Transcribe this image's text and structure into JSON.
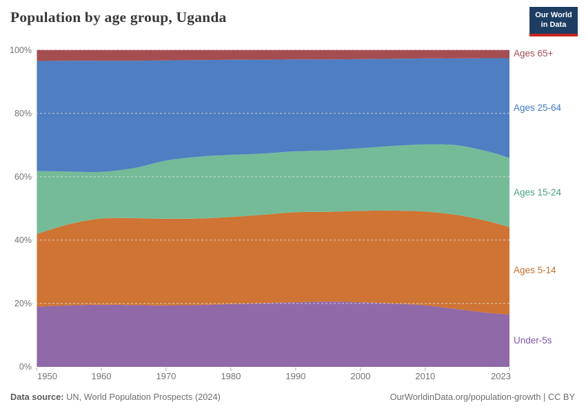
{
  "header": {
    "title": "Population by age group, Uganda",
    "logo_line1": "Our World",
    "logo_line2": "in Data",
    "logo_bg": "#1D3D63",
    "logo_bar": "#C9251C"
  },
  "footer": {
    "source_label": "Data source:",
    "source_text": " UN, World Population Prospects (2024)",
    "right_text": "OurWorldinData.org/population-growth | CC BY"
  },
  "chart_data": {
    "type": "area",
    "stacked": true,
    "relative": true,
    "title": "Population by age group, Uganda",
    "xlabel": "",
    "ylabel": "",
    "unit": "%",
    "xlim": [
      1950,
      2023
    ],
    "ylim": [
      0,
      100
    ],
    "grid": "dashed-horizontal",
    "grid_color": "#dddddd",
    "axis_text_color": "#737373",
    "legend_position": "right",
    "x": [
      1950,
      1955,
      1960,
      1965,
      1970,
      1975,
      1980,
      1985,
      1990,
      1995,
      2000,
      2005,
      2010,
      2015,
      2020,
      2023
    ],
    "x_ticks": [
      1950,
      1960,
      1970,
      1980,
      1990,
      2000,
      2010,
      2023
    ],
    "y_ticks": [
      0,
      20,
      40,
      60,
      80,
      100
    ],
    "y_tick_suffix": "%",
    "series": [
      {
        "name": "Under-5s",
        "color": "#9069A8",
        "label_color": "#7E56A7",
        "values": [
          19.0,
          19.4,
          19.6,
          19.5,
          19.4,
          19.5,
          19.8,
          20.1,
          20.4,
          20.6,
          20.4,
          20.0,
          19.4,
          18.2,
          17.0,
          16.5
        ]
      },
      {
        "name": "Ages 5-14",
        "color": "#CF7434",
        "label_color": "#C66D29",
        "values": [
          22.9,
          25.6,
          27.2,
          27.4,
          27.3,
          27.3,
          27.5,
          27.9,
          28.4,
          28.3,
          28.8,
          29.3,
          29.6,
          29.7,
          28.8,
          27.6
        ]
      },
      {
        "name": "Ages 15-24",
        "color": "#75BB98",
        "label_color": "#49A083",
        "values": [
          19.9,
          16.6,
          14.7,
          15.8,
          18.4,
          19.5,
          19.6,
          19.3,
          19.2,
          19.4,
          19.8,
          20.4,
          21.2,
          22.0,
          22.0,
          21.8
        ]
      },
      {
        "name": "Ages 25-64",
        "color": "#4F7EC2",
        "label_color": "#3D79C4",
        "values": [
          34.7,
          35.0,
          35.1,
          33.9,
          31.6,
          30.5,
          30.0,
          29.6,
          29.0,
          28.7,
          28.1,
          27.5,
          27.1,
          27.4,
          29.6,
          31.5
        ]
      },
      {
        "name": "Ages 65+",
        "color": "#A54E52",
        "label_color": "#A04C52",
        "values": [
          3.5,
          3.4,
          3.4,
          3.4,
          3.3,
          3.2,
          3.1,
          3.1,
          3.0,
          3.0,
          2.9,
          2.8,
          2.7,
          2.7,
          2.6,
          2.6
        ]
      }
    ]
  }
}
